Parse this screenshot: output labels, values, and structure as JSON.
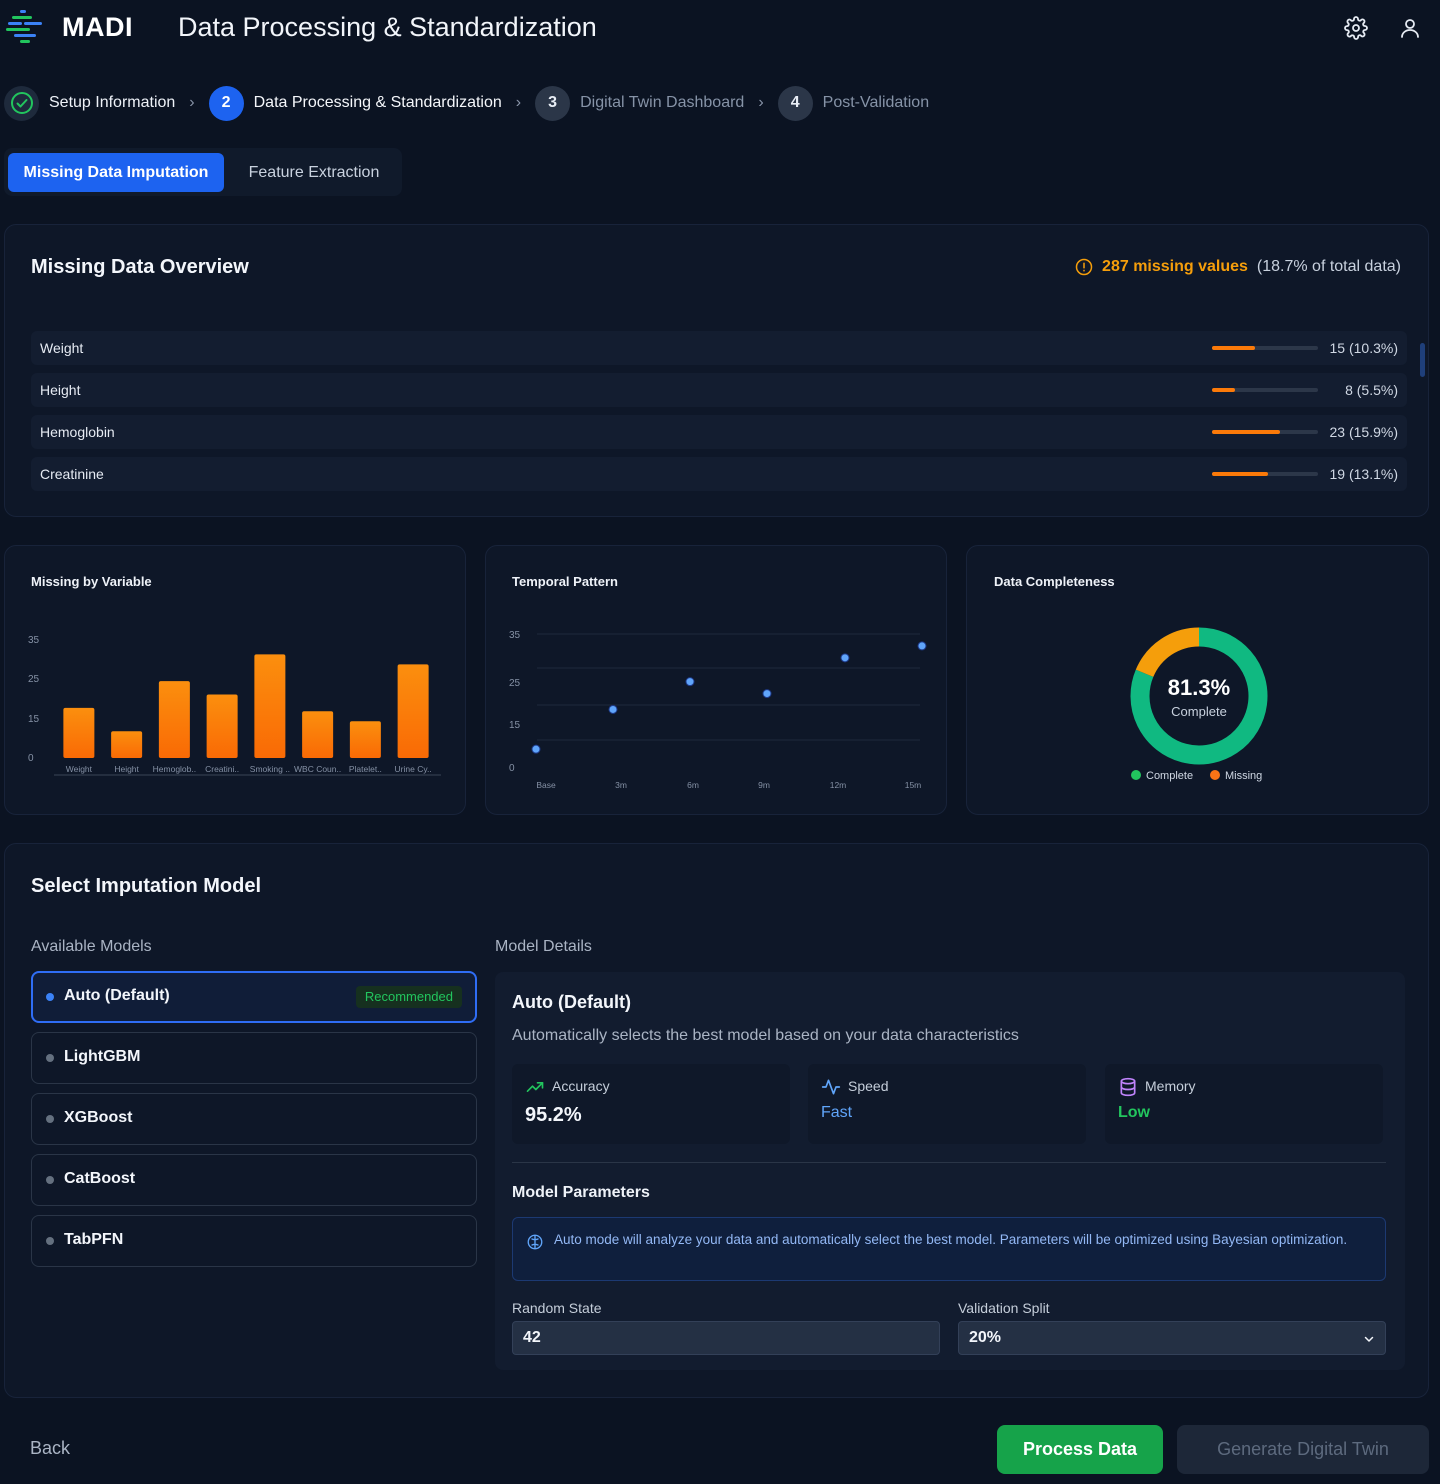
{
  "app": {
    "name": "MADI",
    "page_title": "Data Processing & Standardization"
  },
  "header": {
    "icons": [
      "gear-icon",
      "user-icon"
    ]
  },
  "stepper": {
    "steps": [
      {
        "number": "",
        "label": "Setup Information",
        "state": "complete"
      },
      {
        "number": "2",
        "label": "Data Processing & Standardization",
        "state": "active"
      },
      {
        "number": "3",
        "label": "Digital Twin Dashboard",
        "state": "upcoming"
      },
      {
        "number": "4",
        "label": "Post-Validation",
        "state": "upcoming"
      }
    ]
  },
  "tabs": [
    {
      "label": "Missing Data Imputation",
      "active": true
    },
    {
      "label": "Feature Extraction",
      "active": false
    }
  ],
  "overview": {
    "title": "Missing Data Overview",
    "summary_count": "287 missing values",
    "summary_pct": "(18.7% of total data)",
    "rows": [
      {
        "label": "Weight",
        "value": "15 (10.3%)",
        "fraction": 0.41
      },
      {
        "label": "Height",
        "value": "8 (5.5%)",
        "fraction": 0.22
      },
      {
        "label": "Hemoglobin",
        "value": "23 (15.9%)",
        "fraction": 0.64
      },
      {
        "label": "Creatinine",
        "value": "19 (13.1%)",
        "fraction": 0.53
      }
    ]
  },
  "chart_data": [
    {
      "type": "bar",
      "title": "Missing by Variable",
      "categories": [
        "Weight",
        "Height",
        "Hemoglob..",
        "Creatini..",
        "Smoking ..",
        "WBC Coun..",
        "Platelet..",
        "Urine Cy.."
      ],
      "values": [
        15,
        8,
        23,
        19,
        31,
        14,
        11,
        28
      ],
      "yticks": [
        "35",
        "25",
        "15",
        "0"
      ],
      "ylim": [
        0,
        35
      ],
      "color": "#fb7a09"
    },
    {
      "type": "scatter",
      "title": "Temporal Pattern",
      "x": [
        "Base",
        "3m",
        "6m",
        "9m",
        "12m",
        "15m"
      ],
      "values": [
        6,
        16,
        23,
        20,
        29,
        32
      ],
      "yticks": [
        "35",
        "25",
        "15",
        "0"
      ],
      "ylim": [
        0,
        35
      ],
      "color": "#60a5fa"
    },
    {
      "type": "pie",
      "title": "Data Completeness",
      "center_value": "81.3%",
      "center_label": "Complete",
      "slices": [
        {
          "name": "Complete",
          "value": 81.3,
          "color": "#10b981"
        },
        {
          "name": "Missing",
          "value": 18.7,
          "color": "#f59e0b"
        }
      ],
      "legend": [
        {
          "name": "Complete",
          "color": "#22c55e"
        },
        {
          "name": "Missing",
          "color": "#f97316"
        }
      ]
    }
  ],
  "imputation": {
    "title": "Select Imputation Model",
    "available_label": "Available Models",
    "details_label": "Model Details",
    "models": [
      {
        "name": "Auto (Default)",
        "badge": "Recommended",
        "selected": true
      },
      {
        "name": "LightGBM",
        "badge": "",
        "selected": false
      },
      {
        "name": "XGBoost",
        "badge": "",
        "selected": false
      },
      {
        "name": "CatBoost",
        "badge": "",
        "selected": false
      },
      {
        "name": "TabPFN",
        "badge": "",
        "selected": false
      }
    ],
    "details": {
      "name": "Auto (Default)",
      "description": "Automatically selects the best model based on your data characteristics",
      "metrics": [
        {
          "label": "Accuracy",
          "value": "95.2%",
          "icon": "trending-up-icon",
          "color": "#22c55e"
        },
        {
          "label": "Speed",
          "value": "Fast",
          "icon": "activity-icon",
          "color": "#60a5fa"
        },
        {
          "label": "Memory",
          "value": "Low",
          "icon": "database-icon",
          "color": "#22c55e"
        }
      ],
      "params_title": "Model Parameters",
      "info": "Auto mode will analyze your data and automatically select the best model. Parameters will be optimized using Bayesian optimization.",
      "random_state_label": "Random State",
      "random_state_value": "42",
      "validation_split_label": "Validation Split",
      "validation_split_value": "20%"
    }
  },
  "footer": {
    "back_label": "Back",
    "process_label": "Process Data",
    "generate_label": "Generate Digital Twin"
  }
}
